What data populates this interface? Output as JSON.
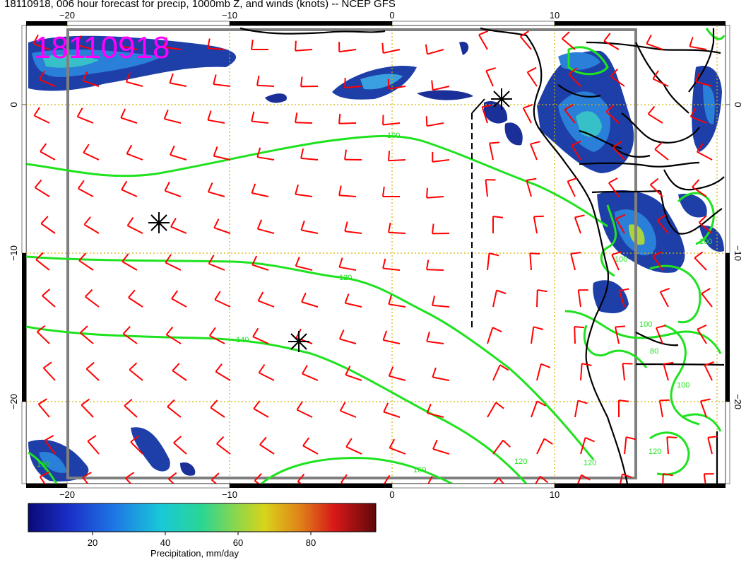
{
  "title": "18110918, 006 hour forecast for precip, 1000mb Z, and winds (knots) -- NCEP GFS",
  "stamp": "18110918",
  "axes": {
    "lon_top": [
      "−20",
      "−10",
      "0",
      "10"
    ],
    "lon_bottom": [
      "−20",
      "−10",
      "0",
      "10"
    ],
    "lat_left": [
      "0",
      "−10",
      "−20"
    ],
    "lat_right": [
      "0",
      "−10",
      "−20"
    ]
  },
  "contour_labels": [
    "100",
    "120",
    "140",
    "160",
    "160",
    "120",
    "120",
    "100",
    "80",
    "100",
    "100",
    "100",
    "120"
  ],
  "colorbar": {
    "label": "Precipitation, mm/day",
    "ticks": [
      "20",
      "40",
      "60",
      "80"
    ],
    "colors": [
      "#0a0a78",
      "#1a30c8",
      "#1f78e6",
      "#18c8d8",
      "#2ad694",
      "#8ed64a",
      "#d8d41a",
      "#e08418",
      "#d81818",
      "#600808"
    ]
  },
  "colors": {
    "wind_barbs": "#ff0000",
    "contours": "#1fe21f",
    "stamp": "#ff00ff",
    "gridlines": "#d4b400",
    "coastline": "#000000"
  }
}
